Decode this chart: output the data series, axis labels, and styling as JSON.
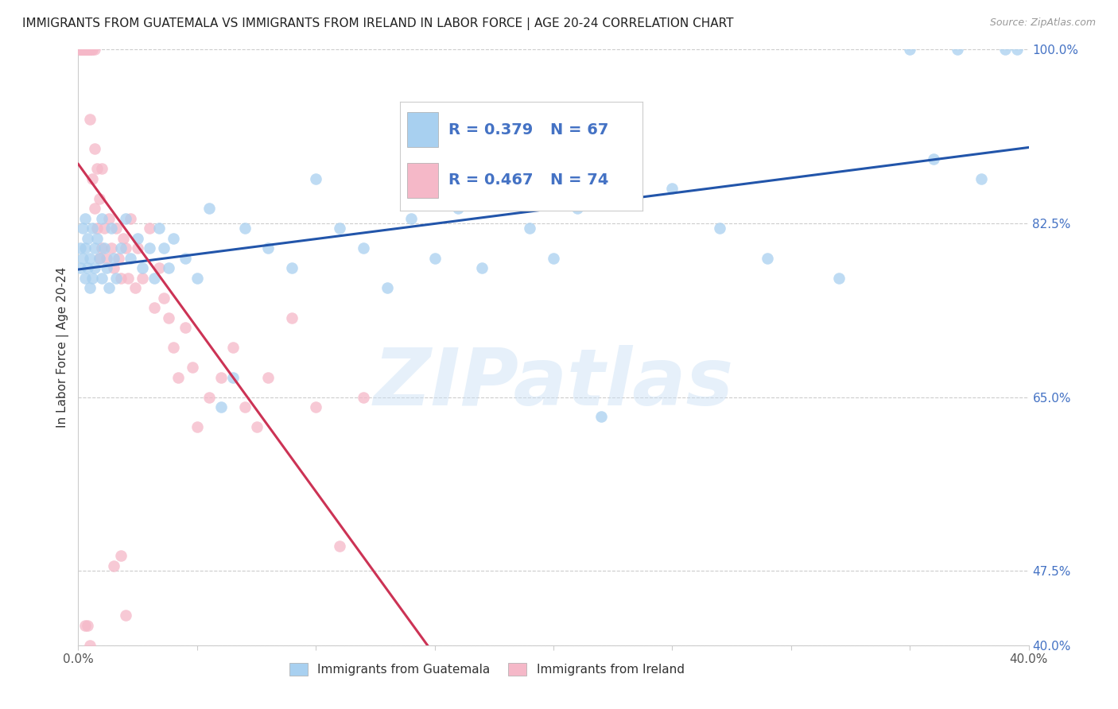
{
  "title": "IMMIGRANTS FROM GUATEMALA VS IMMIGRANTS FROM IRELAND IN LABOR FORCE | AGE 20-24 CORRELATION CHART",
  "source": "Source: ZipAtlas.com",
  "ylabel": "In Labor Force | Age 20-24",
  "xlim": [
    0.0,
    0.4
  ],
  "ylim": [
    0.4,
    1.0
  ],
  "ytick_vals": [
    1.0,
    0.825,
    0.65,
    0.475,
    0.4
  ],
  "ytick_labels": [
    "100.0%",
    "82.5%",
    "65.0%",
    "47.5%",
    "40.0%"
  ],
  "xtick_vals": [
    0.0,
    0.05,
    0.1,
    0.15,
    0.2,
    0.25,
    0.3,
    0.35,
    0.4
  ],
  "xtick_labels": [
    "0.0%",
    "",
    "",
    "",
    "",
    "",
    "",
    "",
    "40.0%"
  ],
  "r_guatemala": 0.379,
  "n_guatemala": 67,
  "r_ireland": 0.467,
  "n_ireland": 74,
  "color_guatemala": "#a8d0f0",
  "color_ireland": "#f5b8c8",
  "line_color_guatemala": "#2255aa",
  "line_color_ireland": "#cc3355",
  "background_color": "#ffffff",
  "watermark": "ZIPatlas",
  "guatemala_x": [
    0.001,
    0.001,
    0.002,
    0.002,
    0.003,
    0.003,
    0.003,
    0.004,
    0.004,
    0.005,
    0.005,
    0.006,
    0.006,
    0.007,
    0.007,
    0.008,
    0.009,
    0.01,
    0.01,
    0.011,
    0.012,
    0.013,
    0.014,
    0.015,
    0.016,
    0.018,
    0.02,
    0.022,
    0.025,
    0.027,
    0.03,
    0.032,
    0.034,
    0.036,
    0.038,
    0.04,
    0.045,
    0.05,
    0.055,
    0.06,
    0.065,
    0.07,
    0.08,
    0.09,
    0.1,
    0.11,
    0.12,
    0.13,
    0.14,
    0.15,
    0.16,
    0.17,
    0.18,
    0.19,
    0.2,
    0.21,
    0.22,
    0.25,
    0.27,
    0.29,
    0.32,
    0.35,
    0.36,
    0.37,
    0.38,
    0.39,
    0.395
  ],
  "guatemala_y": [
    0.8,
    0.78,
    0.82,
    0.79,
    0.77,
    0.8,
    0.83,
    0.78,
    0.81,
    0.76,
    0.79,
    0.82,
    0.77,
    0.8,
    0.78,
    0.81,
    0.79,
    0.83,
    0.77,
    0.8,
    0.78,
    0.76,
    0.82,
    0.79,
    0.77,
    0.8,
    0.83,
    0.79,
    0.81,
    0.78,
    0.8,
    0.77,
    0.82,
    0.8,
    0.78,
    0.81,
    0.79,
    0.77,
    0.84,
    0.64,
    0.67,
    0.82,
    0.8,
    0.78,
    0.87,
    0.82,
    0.8,
    0.76,
    0.83,
    0.79,
    0.84,
    0.78,
    0.86,
    0.82,
    0.79,
    0.84,
    0.63,
    0.86,
    0.82,
    0.79,
    0.77,
    1.0,
    0.89,
    1.0,
    0.87,
    1.0,
    1.0
  ],
  "ireland_x": [
    0.001,
    0.001,
    0.001,
    0.001,
    0.001,
    0.002,
    0.002,
    0.002,
    0.002,
    0.003,
    0.003,
    0.003,
    0.003,
    0.003,
    0.004,
    0.004,
    0.004,
    0.005,
    0.005,
    0.005,
    0.005,
    0.006,
    0.006,
    0.006,
    0.007,
    0.007,
    0.007,
    0.008,
    0.008,
    0.009,
    0.009,
    0.01,
    0.01,
    0.011,
    0.012,
    0.013,
    0.014,
    0.015,
    0.016,
    0.017,
    0.018,
    0.019,
    0.02,
    0.021,
    0.022,
    0.024,
    0.025,
    0.027,
    0.03,
    0.032,
    0.034,
    0.036,
    0.038,
    0.04,
    0.042,
    0.045,
    0.048,
    0.05,
    0.055,
    0.06,
    0.065,
    0.07,
    0.075,
    0.08,
    0.09,
    0.1,
    0.11,
    0.12,
    0.015,
    0.018,
    0.02,
    0.003,
    0.004,
    0.005
  ],
  "ireland_y": [
    1.0,
    1.0,
    1.0,
    1.0,
    1.0,
    1.0,
    1.0,
    1.0,
    1.0,
    1.0,
    1.0,
    1.0,
    1.0,
    1.0,
    1.0,
    1.0,
    1.0,
    1.0,
    1.0,
    1.0,
    0.93,
    1.0,
    1.0,
    0.87,
    1.0,
    0.9,
    0.84,
    0.88,
    0.82,
    0.85,
    0.79,
    0.88,
    0.8,
    0.82,
    0.79,
    0.83,
    0.8,
    0.78,
    0.82,
    0.79,
    0.77,
    0.81,
    0.8,
    0.77,
    0.83,
    0.76,
    0.8,
    0.77,
    0.82,
    0.74,
    0.78,
    0.75,
    0.73,
    0.7,
    0.67,
    0.72,
    0.68,
    0.62,
    0.65,
    0.67,
    0.7,
    0.64,
    0.62,
    0.67,
    0.73,
    0.64,
    0.5,
    0.65,
    0.48,
    0.49,
    0.43,
    0.42,
    0.42,
    0.4
  ]
}
